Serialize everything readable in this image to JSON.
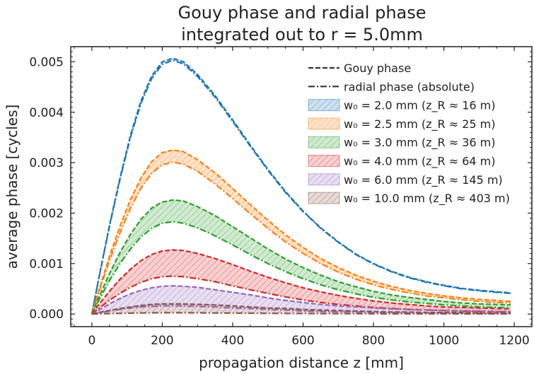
{
  "chart_data": {
    "type": "area",
    "title": "Gouy phase and radial phase",
    "subtitle": "integrated out to r = 5.0mm",
    "xlabel": "propagation distance z [mm]",
    "ylabel": "average phase [cycles]",
    "xlim": [
      -60,
      1250
    ],
    "ylim": [
      -0.00025,
      0.0053
    ],
    "xticks": [
      0,
      200,
      400,
      600,
      800,
      1000,
      1200
    ],
    "xtick_labels": [
      "0",
      "200",
      "400",
      "600",
      "800",
      "1000",
      "1200"
    ],
    "yticks": [
      0,
      0.001,
      0.002,
      0.003,
      0.004,
      0.005
    ],
    "ytick_labels": [
      "0.000",
      "0.001",
      "0.002",
      "0.003",
      "0.004",
      "0.005"
    ],
    "grid": false,
    "legend_position": "top-right",
    "legend_lines": [
      {
        "label": "Gouy phase",
        "style": "dashed"
      },
      {
        "label": "radial phase (absolute)",
        "style": "dash-dot"
      }
    ],
    "x": [
      0,
      20,
      50,
      80,
      110,
      140,
      170,
      200,
      230,
      260,
      300,
      350,
      400,
      450,
      500,
      550,
      600,
      650,
      700,
      750,
      800,
      850,
      900,
      950,
      1000,
      1050,
      1100,
      1150,
      1190
    ],
    "series": [
      {
        "name": "w₀ = 2.0 mm (z_R ≈ 16 m)",
        "color": "#1f77b4",
        "gouy": [
          0,
          0.00072,
          0.00175,
          0.0027,
          0.00355,
          0.00423,
          0.00472,
          0.005,
          0.00507,
          0.005,
          0.00475,
          0.00433,
          0.00385,
          0.00335,
          0.00287,
          0.00243,
          0.00204,
          0.00171,
          0.00143,
          0.00119,
          0.001,
          0.00085,
          0.00073,
          0.00064,
          0.00057,
          0.00051,
          0.00047,
          0.00044,
          0.00042
        ],
        "radial": [
          0,
          0.00071,
          0.00173,
          0.00267,
          0.00351,
          0.00418,
          0.00467,
          0.00495,
          0.00503,
          0.00496,
          0.00471,
          0.0043,
          0.00382,
          0.00333,
          0.00285,
          0.00241,
          0.00203,
          0.0017,
          0.00142,
          0.00118,
          0.00099,
          0.00084,
          0.00072,
          0.00063,
          0.00056,
          0.0005,
          0.00046,
          0.00043,
          0.00041
        ]
      },
      {
        "name": "w₀ = 2.5 mm (z_R ≈ 25 m)",
        "color": "#ff7f0e",
        "gouy": [
          0,
          0.00047,
          0.00114,
          0.00174,
          0.00227,
          0.0027,
          0.00302,
          0.0032,
          0.00325,
          0.00322,
          0.00306,
          0.0028,
          0.00249,
          0.00217,
          0.00186,
          0.00157,
          0.00132,
          0.0011,
          0.00092,
          0.00077,
          0.00065,
          0.00055,
          0.00047,
          0.00041,
          0.00036,
          0.00032,
          0.00029,
          0.00027,
          0.00025
        ],
        "radial": [
          0,
          0.00043,
          0.00105,
          0.00161,
          0.0021,
          0.0025,
          0.00279,
          0.00296,
          0.00301,
          0.00297,
          0.00283,
          0.00258,
          0.00229,
          0.00199,
          0.0017,
          0.00143,
          0.0012,
          0.001,
          0.00083,
          0.00069,
          0.00058,
          0.00049,
          0.00042,
          0.00036,
          0.00032,
          0.00028,
          0.00025,
          0.00023,
          0.00022
        ]
      },
      {
        "name": "w₀ = 3.0 mm (z_R ≈ 36 m)",
        "color": "#2ca02c",
        "gouy": [
          0,
          0.00033,
          0.0008,
          0.00122,
          0.00158,
          0.00188,
          0.0021,
          0.00222,
          0.00226,
          0.00224,
          0.00213,
          0.00195,
          0.00173,
          0.00151,
          0.00129,
          0.00109,
          0.00092,
          0.00077,
          0.00064,
          0.00054,
          0.00045,
          0.00038,
          0.00033,
          0.00029,
          0.00025,
          0.00022,
          0.0002,
          0.00019,
          0.00018
        ],
        "radial": [
          0,
          0.00027,
          0.00066,
          0.001,
          0.00129,
          0.00153,
          0.0017,
          0.0018,
          0.00183,
          0.0018,
          0.00171,
          0.00155,
          0.00137,
          0.00118,
          0.001,
          0.00084,
          0.0007,
          0.00058,
          0.00048,
          0.0004,
          0.00033,
          0.00028,
          0.00024,
          0.00021,
          0.00018,
          0.00016,
          0.00014,
          0.00013,
          0.00012
        ]
      },
      {
        "name": "w₀ = 4.0 mm (z_R ≈ 64 m)",
        "color": "#d62728",
        "gouy": [
          0,
          0.00019,
          0.00045,
          0.00069,
          0.00089,
          0.00106,
          0.00118,
          0.00125,
          0.00127,
          0.00126,
          0.0012,
          0.0011,
          0.00098,
          0.00085,
          0.00073,
          0.00062,
          0.00052,
          0.00044,
          0.00037,
          0.00031,
          0.00026,
          0.00022,
          0.00019,
          0.00016,
          0.00014,
          0.00013,
          0.00012,
          0.00011,
          0.0001
        ],
        "radial": [
          0,
          0.00011,
          0.00027,
          0.00041,
          0.00053,
          0.00063,
          0.0007,
          0.00074,
          0.00075,
          0.00074,
          0.0007,
          0.00064,
          0.00056,
          0.00048,
          0.00041,
          0.00034,
          0.00028,
          0.00023,
          0.00019,
          0.00016,
          0.00013,
          0.00011,
          9e-05,
          8e-05,
          7e-05,
          6e-05,
          5e-05,
          5e-05,
          4e-05
        ]
      },
      {
        "name": "w₀ = 6.0 mm (z_R ≈ 145 m)",
        "color": "#9467bd",
        "gouy": [
          0,
          8e-05,
          0.0002,
          0.00031,
          0.0004,
          0.00047,
          0.00052,
          0.00055,
          0.00056,
          0.00055,
          0.00053,
          0.00048,
          0.00043,
          0.00038,
          0.00032,
          0.00027,
          0.00023,
          0.00019,
          0.00016,
          0.00014,
          0.00012,
          0.0001,
          9e-05,
          8e-05,
          7e-05,
          6e-05,
          6e-05,
          5e-05,
          5e-05
        ],
        "radial": [
          0,
          2.5e-05,
          6e-05,
          9e-05,
          0.00012,
          0.00014,
          0.00015,
          0.00016,
          0.00016,
          0.00016,
          0.00015,
          0.00014,
          0.00012,
          0.00011,
          9e-05,
          8e-05,
          6e-05,
          5e-05,
          4e-05,
          4e-05,
          3e-05,
          3e-05,
          2e-05,
          2e-05,
          2e-05,
          1e-05,
          1e-05,
          1e-05,
          1e-05
        ]
      },
      {
        "name": "w₀ = 10.0 mm (z_R ≈ 403 m)",
        "color": "#8c564b",
        "gouy": [
          0,
          3e-05,
          7e-05,
          0.00011,
          0.00014,
          0.00017,
          0.00019,
          0.0002,
          0.0002,
          0.0002,
          0.00019,
          0.00018,
          0.00016,
          0.00014,
          0.00012,
          0.00011,
          9e-05,
          8e-05,
          7e-05,
          6e-05,
          5e-05,
          4e-05,
          4e-05,
          3e-05,
          3e-05,
          3e-05,
          2e-05,
          2e-05,
          2e-05
        ],
        "radial": [
          0,
          4e-06,
          9e-06,
          1.4e-05,
          1.8e-05,
          2.1e-05,
          2.3e-05,
          2.4e-05,
          2.4e-05,
          2.4e-05,
          2.3e-05,
          2.1e-05,
          1.9e-05,
          1.6e-05,
          1.4e-05,
          1.2e-05,
          1e-05,
          8e-06,
          7e-06,
          6e-06,
          5e-06,
          4e-06,
          3e-06,
          3e-06,
          3e-06,
          2e-06,
          2e-06,
          2e-06,
          2e-06
        ]
      }
    ]
  }
}
